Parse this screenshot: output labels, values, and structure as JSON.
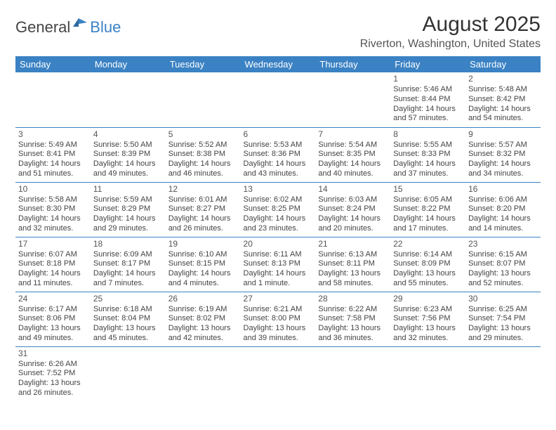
{
  "logo": {
    "general": "General",
    "blue": "Blue"
  },
  "title": "August 2025",
  "location": "Riverton, Washington, United States",
  "colors": {
    "header_bg": "#3b82c4",
    "header_text": "#ffffff",
    "border": "#3b82c4",
    "text": "#444444",
    "logo_blue": "#3b82c4"
  },
  "weekdays": [
    "Sunday",
    "Monday",
    "Tuesday",
    "Wednesday",
    "Thursday",
    "Friday",
    "Saturday"
  ],
  "weeks": [
    [
      null,
      null,
      null,
      null,
      null,
      {
        "n": "1",
        "sr": "Sunrise: 5:46 AM",
        "ss": "Sunset: 8:44 PM",
        "d1": "Daylight: 14 hours",
        "d2": "and 57 minutes."
      },
      {
        "n": "2",
        "sr": "Sunrise: 5:48 AM",
        "ss": "Sunset: 8:42 PM",
        "d1": "Daylight: 14 hours",
        "d2": "and 54 minutes."
      }
    ],
    [
      {
        "n": "3",
        "sr": "Sunrise: 5:49 AM",
        "ss": "Sunset: 8:41 PM",
        "d1": "Daylight: 14 hours",
        "d2": "and 51 minutes."
      },
      {
        "n": "4",
        "sr": "Sunrise: 5:50 AM",
        "ss": "Sunset: 8:39 PM",
        "d1": "Daylight: 14 hours",
        "d2": "and 49 minutes."
      },
      {
        "n": "5",
        "sr": "Sunrise: 5:52 AM",
        "ss": "Sunset: 8:38 PM",
        "d1": "Daylight: 14 hours",
        "d2": "and 46 minutes."
      },
      {
        "n": "6",
        "sr": "Sunrise: 5:53 AM",
        "ss": "Sunset: 8:36 PM",
        "d1": "Daylight: 14 hours",
        "d2": "and 43 minutes."
      },
      {
        "n": "7",
        "sr": "Sunrise: 5:54 AM",
        "ss": "Sunset: 8:35 PM",
        "d1": "Daylight: 14 hours",
        "d2": "and 40 minutes."
      },
      {
        "n": "8",
        "sr": "Sunrise: 5:55 AM",
        "ss": "Sunset: 8:33 PM",
        "d1": "Daylight: 14 hours",
        "d2": "and 37 minutes."
      },
      {
        "n": "9",
        "sr": "Sunrise: 5:57 AM",
        "ss": "Sunset: 8:32 PM",
        "d1": "Daylight: 14 hours",
        "d2": "and 34 minutes."
      }
    ],
    [
      {
        "n": "10",
        "sr": "Sunrise: 5:58 AM",
        "ss": "Sunset: 8:30 PM",
        "d1": "Daylight: 14 hours",
        "d2": "and 32 minutes."
      },
      {
        "n": "11",
        "sr": "Sunrise: 5:59 AM",
        "ss": "Sunset: 8:29 PM",
        "d1": "Daylight: 14 hours",
        "d2": "and 29 minutes."
      },
      {
        "n": "12",
        "sr": "Sunrise: 6:01 AM",
        "ss": "Sunset: 8:27 PM",
        "d1": "Daylight: 14 hours",
        "d2": "and 26 minutes."
      },
      {
        "n": "13",
        "sr": "Sunrise: 6:02 AM",
        "ss": "Sunset: 8:25 PM",
        "d1": "Daylight: 14 hours",
        "d2": "and 23 minutes."
      },
      {
        "n": "14",
        "sr": "Sunrise: 6:03 AM",
        "ss": "Sunset: 8:24 PM",
        "d1": "Daylight: 14 hours",
        "d2": "and 20 minutes."
      },
      {
        "n": "15",
        "sr": "Sunrise: 6:05 AM",
        "ss": "Sunset: 8:22 PM",
        "d1": "Daylight: 14 hours",
        "d2": "and 17 minutes."
      },
      {
        "n": "16",
        "sr": "Sunrise: 6:06 AM",
        "ss": "Sunset: 8:20 PM",
        "d1": "Daylight: 14 hours",
        "d2": "and 14 minutes."
      }
    ],
    [
      {
        "n": "17",
        "sr": "Sunrise: 6:07 AM",
        "ss": "Sunset: 8:18 PM",
        "d1": "Daylight: 14 hours",
        "d2": "and 11 minutes."
      },
      {
        "n": "18",
        "sr": "Sunrise: 6:09 AM",
        "ss": "Sunset: 8:17 PM",
        "d1": "Daylight: 14 hours",
        "d2": "and 7 minutes."
      },
      {
        "n": "19",
        "sr": "Sunrise: 6:10 AM",
        "ss": "Sunset: 8:15 PM",
        "d1": "Daylight: 14 hours",
        "d2": "and 4 minutes."
      },
      {
        "n": "20",
        "sr": "Sunrise: 6:11 AM",
        "ss": "Sunset: 8:13 PM",
        "d1": "Daylight: 14 hours",
        "d2": "and 1 minute."
      },
      {
        "n": "21",
        "sr": "Sunrise: 6:13 AM",
        "ss": "Sunset: 8:11 PM",
        "d1": "Daylight: 13 hours",
        "d2": "and 58 minutes."
      },
      {
        "n": "22",
        "sr": "Sunrise: 6:14 AM",
        "ss": "Sunset: 8:09 PM",
        "d1": "Daylight: 13 hours",
        "d2": "and 55 minutes."
      },
      {
        "n": "23",
        "sr": "Sunrise: 6:15 AM",
        "ss": "Sunset: 8:07 PM",
        "d1": "Daylight: 13 hours",
        "d2": "and 52 minutes."
      }
    ],
    [
      {
        "n": "24",
        "sr": "Sunrise: 6:17 AM",
        "ss": "Sunset: 8:06 PM",
        "d1": "Daylight: 13 hours",
        "d2": "and 49 minutes."
      },
      {
        "n": "25",
        "sr": "Sunrise: 6:18 AM",
        "ss": "Sunset: 8:04 PM",
        "d1": "Daylight: 13 hours",
        "d2": "and 45 minutes."
      },
      {
        "n": "26",
        "sr": "Sunrise: 6:19 AM",
        "ss": "Sunset: 8:02 PM",
        "d1": "Daylight: 13 hours",
        "d2": "and 42 minutes."
      },
      {
        "n": "27",
        "sr": "Sunrise: 6:21 AM",
        "ss": "Sunset: 8:00 PM",
        "d1": "Daylight: 13 hours",
        "d2": "and 39 minutes."
      },
      {
        "n": "28",
        "sr": "Sunrise: 6:22 AM",
        "ss": "Sunset: 7:58 PM",
        "d1": "Daylight: 13 hours",
        "d2": "and 36 minutes."
      },
      {
        "n": "29",
        "sr": "Sunrise: 6:23 AM",
        "ss": "Sunset: 7:56 PM",
        "d1": "Daylight: 13 hours",
        "d2": "and 32 minutes."
      },
      {
        "n": "30",
        "sr": "Sunrise: 6:25 AM",
        "ss": "Sunset: 7:54 PM",
        "d1": "Daylight: 13 hours",
        "d2": "and 29 minutes."
      }
    ],
    [
      {
        "n": "31",
        "sr": "Sunrise: 6:26 AM",
        "ss": "Sunset: 7:52 PM",
        "d1": "Daylight: 13 hours",
        "d2": "and 26 minutes."
      },
      null,
      null,
      null,
      null,
      null,
      null
    ]
  ]
}
